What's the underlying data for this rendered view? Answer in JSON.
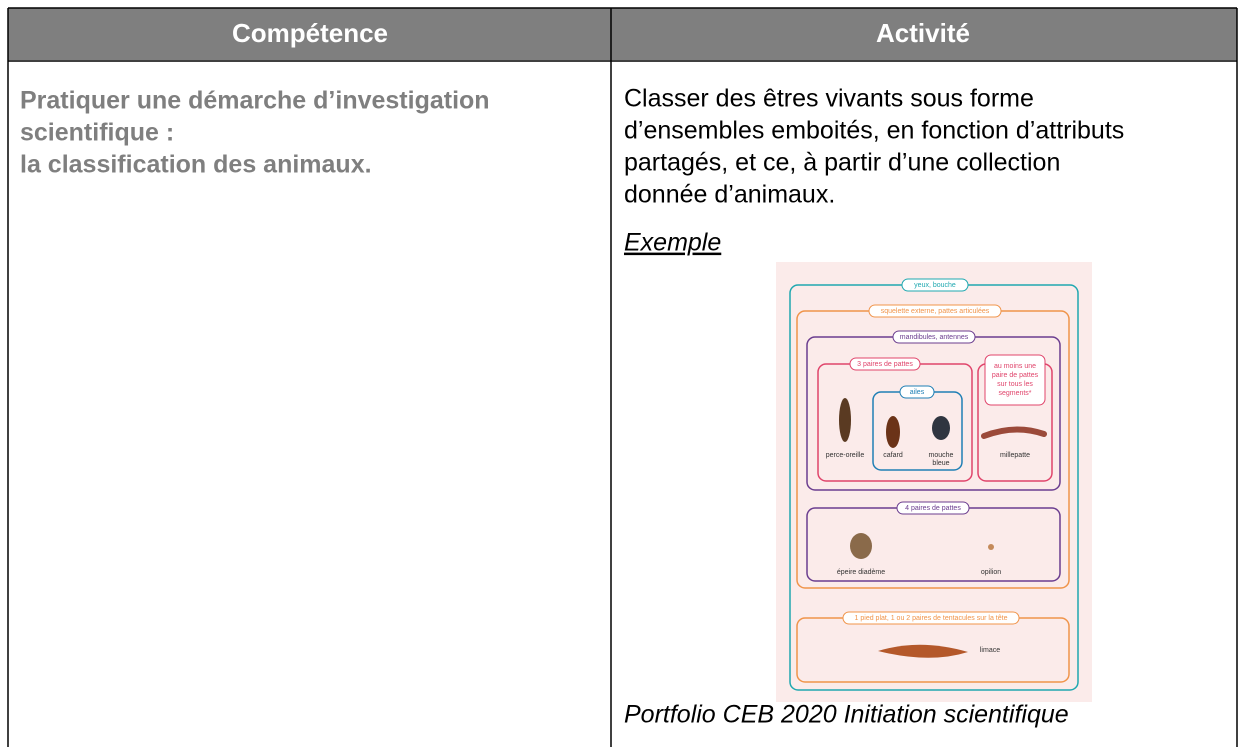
{
  "header": [
    "Compétence",
    "Activité"
  ],
  "competence": [
    "Pratiquer une démarche d’investigation",
    "scientifique :",
    "la classification des animaux."
  ],
  "activite": {
    "lines": [
      "Classer des êtres vivants sous forme",
      "d’ensembles emboités, en fonction d’attributs",
      "partagés, et ce, à partir d’une collection",
      "donnée d’animaux."
    ],
    "example_label": "Exemple",
    "caption": "Portfolio CEB 2020 Initiation scientifique"
  },
  "figure": {
    "groups": [
      "yeux, bouche",
      "squelette externe, pattes articulées",
      "mandibules, antennes",
      "3 paires de pattes",
      "ailes",
      "4 paires de pattes",
      "1 pied plat, 1 ou 2 paires de tentacules sur la tête"
    ],
    "segments_group": [
      "au moins une",
      "paire de pattes",
      "sur tous les",
      "segments*"
    ],
    "animals": [
      "perce-oreille",
      "cafard",
      "mouche",
      "bleue",
      "millepatte",
      "épeire diadème",
      "opilion",
      "limace"
    ]
  }
}
